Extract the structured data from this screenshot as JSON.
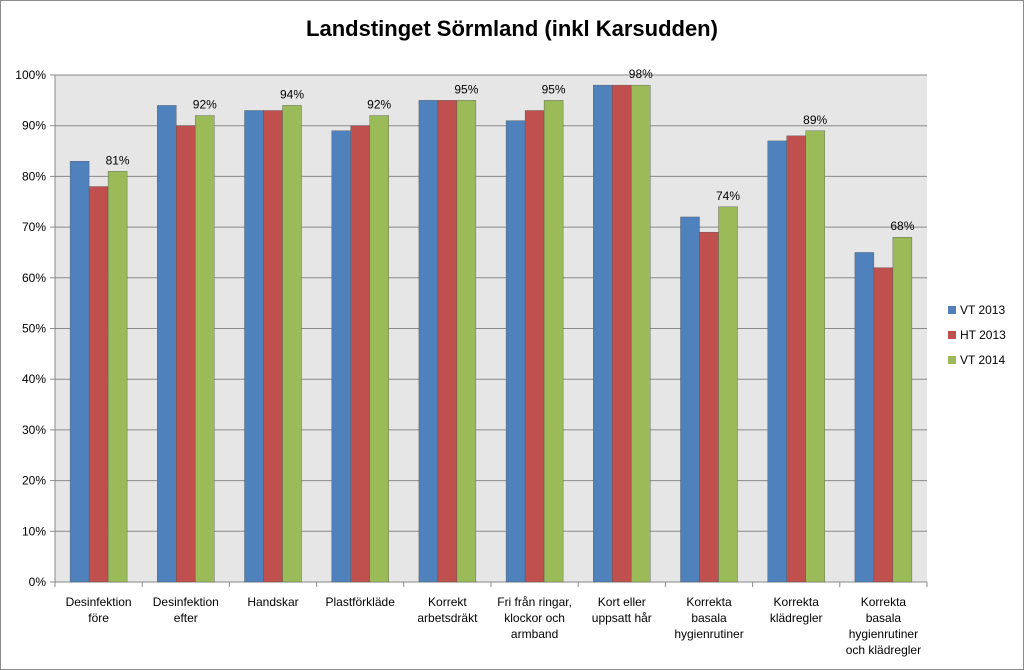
{
  "chart_data": {
    "type": "bar",
    "title": "Landstinget Sörmland (inkl Karsudden)",
    "categories": [
      [
        "Desinfektion",
        "före"
      ],
      [
        "Desinfektion",
        "efter"
      ],
      [
        "Handskar"
      ],
      [
        "Plastförkläde"
      ],
      [
        "Korrekt",
        "arbetsdräkt"
      ],
      [
        "Fri från ringar,",
        "klockor och",
        "armband"
      ],
      [
        "Kort eller",
        "uppsatt hår"
      ],
      [
        "Korrekta",
        "basala",
        "hygienrutiner"
      ],
      [
        "Korrekta",
        "klädregler"
      ],
      [
        "Korrekta",
        "basala",
        "hygienrutiner",
        "och klädregler"
      ]
    ],
    "series": [
      {
        "name": "VT 2013",
        "color": "#4f81bd",
        "values": [
          83,
          94,
          93,
          89,
          95,
          91,
          98,
          72,
          87,
          65
        ]
      },
      {
        "name": "HT 2013",
        "color": "#c0504d",
        "values": [
          78,
          90,
          93,
          90,
          95,
          93,
          98,
          69,
          88,
          62
        ]
      },
      {
        "name": "VT 2014",
        "color": "#9bbb59",
        "values": [
          81,
          92,
          94,
          92,
          95,
          95,
          98,
          74,
          89,
          68
        ]
      }
    ],
    "data_labels": {
      "series": "VT 2014",
      "values": [
        "81%",
        "92%",
        "94%",
        "92%",
        "95%",
        "95%",
        "98%",
        "74%",
        "89%",
        "68%"
      ]
    },
    "y_ticks": [
      "0%",
      "10%",
      "20%",
      "30%",
      "40%",
      "50%",
      "60%",
      "70%",
      "80%",
      "90%",
      "100%"
    ],
    "ylim": [
      0,
      100
    ],
    "xlabel": "",
    "ylabel": "",
    "grid": true,
    "plot_background": "#e6e6e6",
    "legend_position": "right"
  }
}
